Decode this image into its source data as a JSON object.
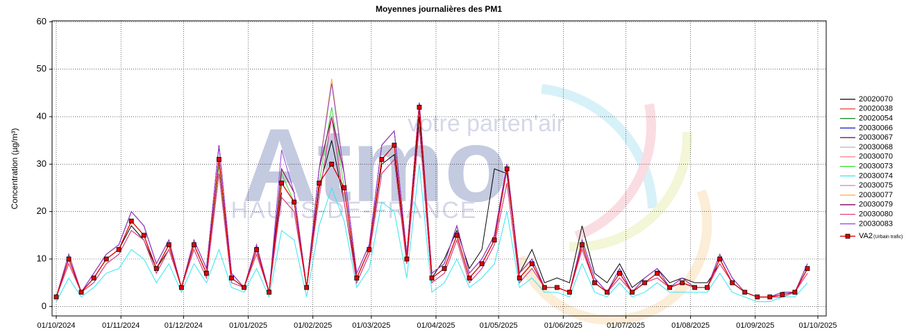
{
  "chart_data": {
    "type": "line",
    "title": "Moyennes journalières des PM1",
    "y_label": "Concentration (µg/m³)",
    "watermark": {
      "brand": "Atmo",
      "tagline": "votre parten'air",
      "region": "HAUTS-DE-FRANCE"
    },
    "xlim": [
      "2024-09-29",
      "2025-10-05"
    ],
    "xticks": [
      {
        "value": "2024-10-01",
        "label": "01/10/2024"
      },
      {
        "value": "2024-11-01",
        "label": "01/11/2024"
      },
      {
        "value": "2024-12-01",
        "label": "01/12/2024"
      },
      {
        "value": "2025-01-01",
        "label": "01/01/2025"
      },
      {
        "value": "2025-02-01",
        "label": "01/02/2025"
      },
      {
        "value": "2025-03-01",
        "label": "01/03/2025"
      },
      {
        "value": "2025-04-01",
        "label": "01/04/2025"
      },
      {
        "value": "2025-05-01",
        "label": "01/05/2025"
      },
      {
        "value": "2025-06-01",
        "label": "01/06/2025"
      },
      {
        "value": "2025-07-01",
        "label": "01/07/2025"
      },
      {
        "value": "2025-08-01",
        "label": "01/08/2025"
      },
      {
        "value": "2025-09-01",
        "label": "01/09/2025"
      },
      {
        "value": "2025-10-01",
        "label": "01/10/2025"
      }
    ],
    "ylim": [
      -2,
      60.2
    ],
    "yticks": [
      0,
      10,
      20,
      30,
      40,
      50,
      60
    ],
    "grid": true,
    "legend": "right",
    "x": [
      "2024-10-01",
      "2024-10-07",
      "2024-10-13",
      "2024-10-19",
      "2024-10-25",
      "2024-10-31",
      "2024-11-06",
      "2024-11-12",
      "2024-11-18",
      "2024-11-24",
      "2024-11-30",
      "2024-12-06",
      "2024-12-12",
      "2024-12-18",
      "2024-12-24",
      "2024-12-30",
      "2025-01-05",
      "2025-01-11",
      "2025-01-17",
      "2025-01-23",
      "2025-01-29",
      "2025-02-04",
      "2025-02-10",
      "2025-02-16",
      "2025-02-22",
      "2025-02-28",
      "2025-03-06",
      "2025-03-12",
      "2025-03-18",
      "2025-03-24",
      "2025-03-30",
      "2025-04-05",
      "2025-04-11",
      "2025-04-17",
      "2025-04-23",
      "2025-04-29",
      "2025-05-05",
      "2025-05-11",
      "2025-05-17",
      "2025-05-23",
      "2025-05-29",
      "2025-06-04",
      "2025-06-10",
      "2025-06-16",
      "2025-06-22",
      "2025-06-28",
      "2025-07-04",
      "2025-07-10",
      "2025-07-16",
      "2025-07-22",
      "2025-07-28",
      "2025-08-03",
      "2025-08-09",
      "2025-08-15",
      "2025-08-21",
      "2025-08-27",
      "2025-09-02",
      "2025-09-08",
      "2025-09-14",
      "2025-09-20",
      "2025-09-26"
    ],
    "series": [
      {
        "name": "20020070",
        "color": "#000000",
        "values": [
          2,
          9,
          3,
          6,
          10,
          12,
          17,
          14,
          8,
          12,
          4,
          13,
          7,
          30,
          6,
          null,
          11,
          3,
          24,
          null,
          4,
          25,
          35,
          22,
          6,
          12,
          30,
          32,
          10,
          40,
          6,
          10,
          16,
          8,
          12,
          29,
          28,
          7,
          12,
          5,
          6,
          5,
          17,
          7,
          5,
          9,
          4,
          6,
          8,
          5,
          6,
          5,
          5,
          9,
          5,
          3,
          2,
          2,
          3,
          3,
          8
        ]
      },
      {
        "name": "20020038",
        "color": "#e8523a",
        "values": [
          2,
          11,
          3,
          7,
          11,
          13,
          20,
          17,
          9,
          14,
          4,
          14,
          8,
          34,
          7,
          4,
          13,
          3,
          29,
          24,
          4,
          29,
          40,
          28,
          7,
          13,
          34,
          37,
          11,
          43,
          7,
          9,
          17,
          7,
          10,
          15,
          30,
          7,
          10,
          4,
          4,
          3,
          14,
          6,
          3,
          8,
          3,
          6,
          8,
          4,
          6,
          4,
          4,
          11,
          6,
          3,
          2,
          2,
          3,
          3,
          9
        ]
      },
      {
        "name": "20020054",
        "color": "#168a16",
        "values": [
          2,
          9,
          3,
          5,
          9,
          11,
          16,
          14,
          7,
          12,
          4,
          12,
          6,
          28,
          5,
          4,
          11,
          3,
          23,
          20,
          4,
          23,
          40,
          22,
          5,
          11,
          28,
          31,
          9,
          38,
          5,
          7,
          14,
          5,
          8,
          13,
          26,
          5,
          8,
          4,
          4,
          3,
          12,
          5,
          3,
          6,
          3,
          5,
          6,
          4,
          5,
          4,
          4,
          9,
          5,
          3,
          2,
          2,
          2,
          3,
          7
        ]
      },
      {
        "name": "20030066",
        "color": "#1414c8",
        "values": [
          2,
          9,
          3,
          5,
          9,
          11,
          16,
          14,
          7,
          12,
          4,
          12,
          6,
          28,
          5,
          4,
          11,
          3,
          23,
          20,
          4,
          23,
          40,
          22,
          5,
          11,
          28,
          31,
          9,
          38,
          5,
          7,
          14,
          5,
          8,
          13,
          26,
          5,
          8,
          4,
          4,
          3,
          12,
          5,
          3,
          6,
          3,
          5,
          6,
          4,
          5,
          4,
          4,
          9,
          5,
          3,
          2,
          2,
          2,
          3,
          7
        ]
      },
      {
        "name": "20030067",
        "color": "#6b1a6b",
        "values": [
          2,
          11,
          3,
          7,
          11,
          13,
          20,
          17,
          9,
          14,
          4,
          14,
          8,
          34,
          7,
          4,
          13,
          3,
          29,
          24,
          4,
          29,
          40,
          28,
          7,
          13,
          34,
          37,
          11,
          43,
          7,
          9,
          17,
          7,
          10,
          15,
          30,
          7,
          10,
          4,
          4,
          3,
          14,
          6,
          3,
          8,
          3,
          6,
          8,
          4,
          6,
          4,
          4,
          11,
          6,
          3,
          2,
          2,
          3,
          3,
          9
        ]
      },
      {
        "name": "20030068",
        "color": "#b4b4b4",
        "values": [
          2,
          9,
          3,
          5,
          9,
          11,
          16,
          14,
          7,
          12,
          4,
          12,
          6,
          28,
          5,
          4,
          11,
          3,
          23,
          20,
          4,
          23,
          40,
          22,
          5,
          11,
          28,
          31,
          9,
          38,
          5,
          7,
          14,
          5,
          8,
          13,
          26,
          5,
          8,
          4,
          4,
          3,
          12,
          5,
          3,
          6,
          3,
          5,
          6,
          4,
          5,
          4,
          4,
          9,
          5,
          3,
          2,
          2,
          2,
          3,
          7
        ]
      },
      {
        "name": "20030070",
        "color": "#ff8a8a",
        "values": [
          2,
          11,
          3,
          7,
          11,
          13,
          20,
          17,
          9,
          14,
          4,
          14,
          8,
          34,
          7,
          4,
          13,
          3,
          29,
          24,
          4,
          29,
          40,
          28,
          7,
          13,
          34,
          37,
          11,
          43,
          7,
          9,
          17,
          7,
          10,
          15,
          30,
          7,
          10,
          4,
          4,
          3,
          14,
          6,
          3,
          8,
          3,
          6,
          8,
          4,
          6,
          4,
          4,
          11,
          6,
          3,
          2,
          2,
          3,
          3,
          9
        ]
      },
      {
        "name": "20030073",
        "color": "#33dd33",
        "values": [
          2,
          10,
          3,
          6,
          10,
          12,
          18,
          15,
          8,
          13,
          4,
          13,
          7,
          30,
          6,
          4,
          12,
          3,
          28,
          22,
          4,
          26,
          42,
          25,
          6,
          12,
          31,
          34,
          10,
          42,
          6,
          8,
          15,
          6,
          9,
          14,
          29,
          6,
          9,
          4,
          4,
          3,
          13,
          5,
          3,
          7,
          3,
          5,
          7,
          4,
          5,
          4,
          4,
          10,
          5,
          3,
          2,
          2,
          2,
          3,
          8
        ]
      },
      {
        "name": "20030074",
        "color": "#33e6f0",
        "values": [
          1,
          6,
          2,
          4,
          7,
          8,
          12,
          10,
          5,
          9,
          3,
          9,
          5,
          12,
          4,
          3,
          8,
          2,
          16,
          14,
          2,
          17,
          25,
          18,
          4,
          8,
          22,
          20,
          6,
          30,
          3,
          5,
          10,
          4,
          6,
          9,
          20,
          4,
          6,
          3,
          3,
          2,
          9,
          3,
          2,
          5,
          2,
          3,
          5,
          3,
          3,
          3,
          3,
          7,
          3,
          2,
          1,
          1,
          2,
          2,
          5
        ]
      },
      {
        "name": "20030075",
        "color": "#f080c8",
        "values": [
          2,
          9,
          3,
          5,
          9,
          11,
          16,
          14,
          7,
          12,
          4,
          12,
          6,
          28,
          5,
          4,
          11,
          3,
          23,
          20,
          4,
          23,
          40,
          22,
          5,
          11,
          28,
          31,
          9,
          38,
          5,
          7,
          14,
          5,
          8,
          13,
          26,
          5,
          8,
          4,
          4,
          3,
          12,
          5,
          3,
          6,
          3,
          5,
          6,
          4,
          5,
          4,
          4,
          9,
          5,
          3,
          2,
          2,
          2,
          3,
          7
        ]
      },
      {
        "name": "20030077",
        "color": "#f0b040",
        "values": [
          2,
          11,
          3,
          7,
          11,
          13,
          20,
          17,
          9,
          14,
          4,
          14,
          8,
          34,
          7,
          4,
          13,
          3,
          29,
          24,
          4,
          29,
          48,
          28,
          7,
          13,
          34,
          37,
          11,
          43,
          7,
          9,
          17,
          7,
          10,
          15,
          30,
          7,
          10,
          4,
          4,
          3,
          14,
          6,
          3,
          8,
          3,
          6,
          8,
          4,
          6,
          4,
          4,
          11,
          6,
          3,
          2,
          2,
          3,
          3,
          9
        ]
      },
      {
        "name": "20030079",
        "color": "#800060",
        "values": [
          2,
          11,
          3,
          7,
          11,
          13,
          20,
          17,
          9,
          14,
          4,
          14,
          8,
          34,
          7,
          4,
          13,
          3,
          29,
          24,
          4,
          29,
          40,
          28,
          7,
          13,
          34,
          37,
          11,
          43,
          7,
          9,
          17,
          7,
          10,
          15,
          30,
          7,
          10,
          4,
          4,
          3,
          14,
          6,
          3,
          8,
          3,
          6,
          8,
          4,
          6,
          4,
          4,
          11,
          6,
          3,
          2,
          2,
          3,
          3,
          9
        ]
      },
      {
        "name": "20030080",
        "color": "#e04080",
        "values": [
          2,
          9,
          3,
          5,
          9,
          11,
          16,
          14,
          7,
          12,
          4,
          12,
          6,
          28,
          5,
          4,
          11,
          3,
          23,
          20,
          4,
          23,
          40,
          22,
          5,
          11,
          28,
          31,
          9,
          38,
          5,
          7,
          14,
          5,
          8,
          13,
          26,
          5,
          8,
          4,
          4,
          3,
          12,
          5,
          3,
          6,
          3,
          5,
          6,
          4,
          5,
          4,
          4,
          9,
          5,
          3,
          2,
          2,
          2,
          3,
          7
        ]
      },
      {
        "name": "20030083",
        "color": "#9040e0",
        "values": [
          2,
          11,
          3,
          7,
          11,
          13,
          20,
          17,
          9,
          14,
          4,
          14,
          8,
          34,
          7,
          4,
          13,
          3,
          33,
          24,
          4,
          29,
          47,
          28,
          7,
          13,
          34,
          37,
          11,
          43,
          7,
          9,
          17,
          7,
          10,
          15,
          30,
          7,
          10,
          4,
          4,
          3,
          14,
          6,
          3,
          8,
          3,
          6,
          8,
          4,
          6,
          4,
          4,
          11,
          6,
          3,
          2,
          2,
          3,
          3,
          9
        ]
      },
      {
        "name": "VA2",
        "legend_suffix": "(Urbain trafic)",
        "color": "#e00000",
        "marker": "square",
        "values": [
          2,
          10,
          3,
          6,
          10,
          12,
          18,
          15,
          8,
          13,
          4,
          13,
          7,
          31,
          6,
          4,
          12,
          3,
          26,
          22,
          4,
          26,
          30,
          25,
          6,
          12,
          31,
          34,
          10,
          42,
          6,
          8,
          15,
          6,
          9,
          14,
          29,
          6,
          9,
          4,
          4,
          3,
          13,
          5,
          3,
          7,
          3,
          5,
          7,
          4,
          5,
          4,
          4,
          10,
          5,
          3,
          2,
          2,
          2.5,
          3,
          8
        ]
      }
    ]
  }
}
